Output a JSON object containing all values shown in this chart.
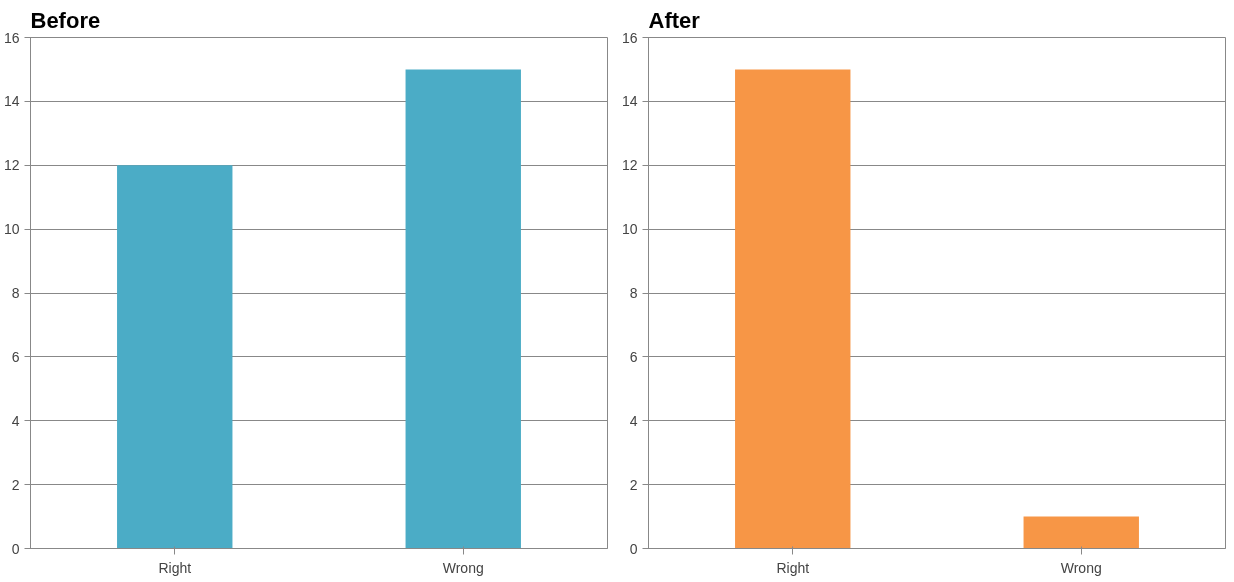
{
  "chart_data": [
    {
      "type": "bar",
      "title": "Before",
      "categories": [
        "Right",
        "Wrong"
      ],
      "values": [
        12,
        15
      ],
      "color": "#4bacc6",
      "ylim": [
        0,
        16
      ],
      "yticks": [
        0,
        2,
        4,
        6,
        8,
        10,
        12,
        14,
        16
      ],
      "grid": "y"
    },
    {
      "type": "bar",
      "title": "After",
      "categories": [
        "Right",
        "Wrong"
      ],
      "values": [
        15,
        1
      ],
      "color": "#f79646",
      "ylim": [
        0,
        16
      ],
      "yticks": [
        0,
        2,
        4,
        6,
        8,
        10,
        12,
        14,
        16
      ],
      "grid": "y"
    }
  ]
}
